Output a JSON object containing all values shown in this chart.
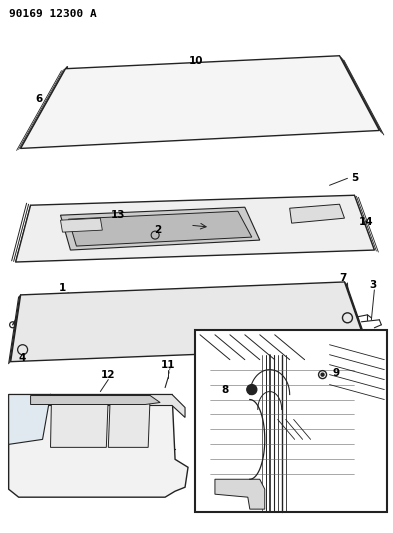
{
  "title": "90169 12300 A",
  "bg_color": "#ffffff",
  "line_color": "#222222",
  "label_color": "#000000",
  "title_fontsize": 8,
  "label_fontsize": 7.5,
  "fig_width": 3.93,
  "fig_height": 5.33,
  "dpi": 100
}
